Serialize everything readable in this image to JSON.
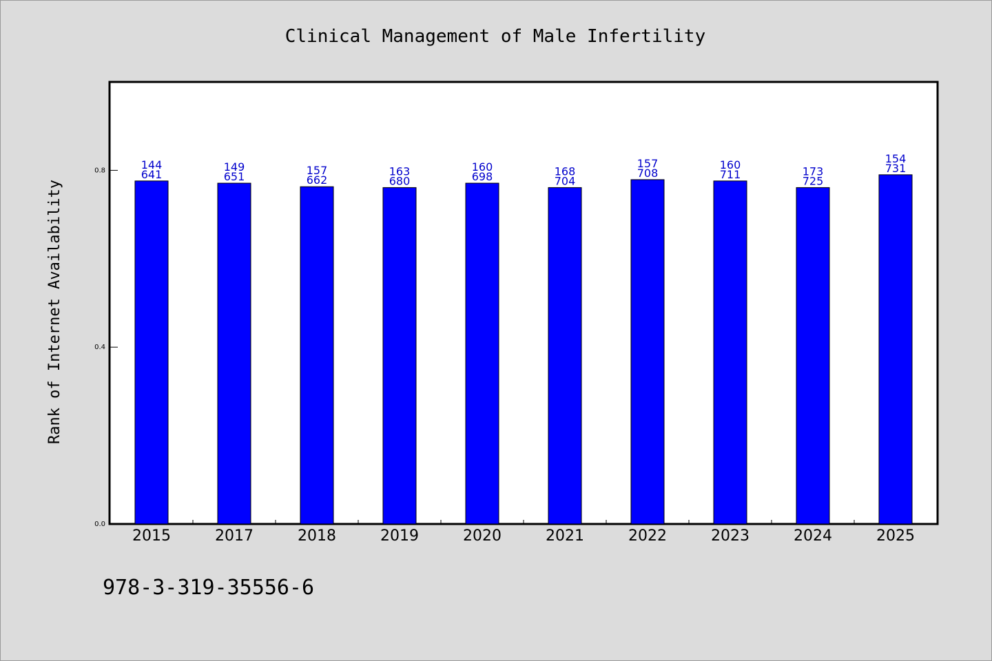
{
  "chart_data": {
    "type": "bar",
    "title": "Clinical Management of Male Infertility",
    "ylabel": "Rank of Internet Availability",
    "xlabel": "",
    "categories": [
      "2015",
      "2017",
      "2018",
      "2019",
      "2020",
      "2021",
      "2022",
      "2023",
      "2024",
      "2025"
    ],
    "values": [
      0.776,
      0.771,
      0.763,
      0.761,
      0.771,
      0.761,
      0.779,
      0.776,
      0.761,
      0.79
    ],
    "bar_labels_top": [
      "144",
      "149",
      "157",
      "163",
      "160",
      "168",
      "157",
      "160",
      "173",
      "154"
    ],
    "bar_labels_bottom": [
      "641",
      "651",
      "662",
      "680",
      "698",
      "704",
      "708",
      "711",
      "725",
      "731"
    ],
    "ylim": [
      0.0,
      1.0
    ],
    "yticks": [
      0.0,
      0.4,
      0.8
    ],
    "ytick_labels": [
      "0.0",
      "0.4",
      "0.8"
    ],
    "grid": false,
    "legend": "none",
    "colors": {
      "bar_fill": "#0000ff",
      "bar_edge": "#000000",
      "bar_label": "#0000cc",
      "text": "#000000",
      "plot_bg": "#ffffff",
      "figure_bg": "#dcdcdc"
    }
  },
  "footer": {
    "isbn": "978-3-319-35556-6"
  }
}
